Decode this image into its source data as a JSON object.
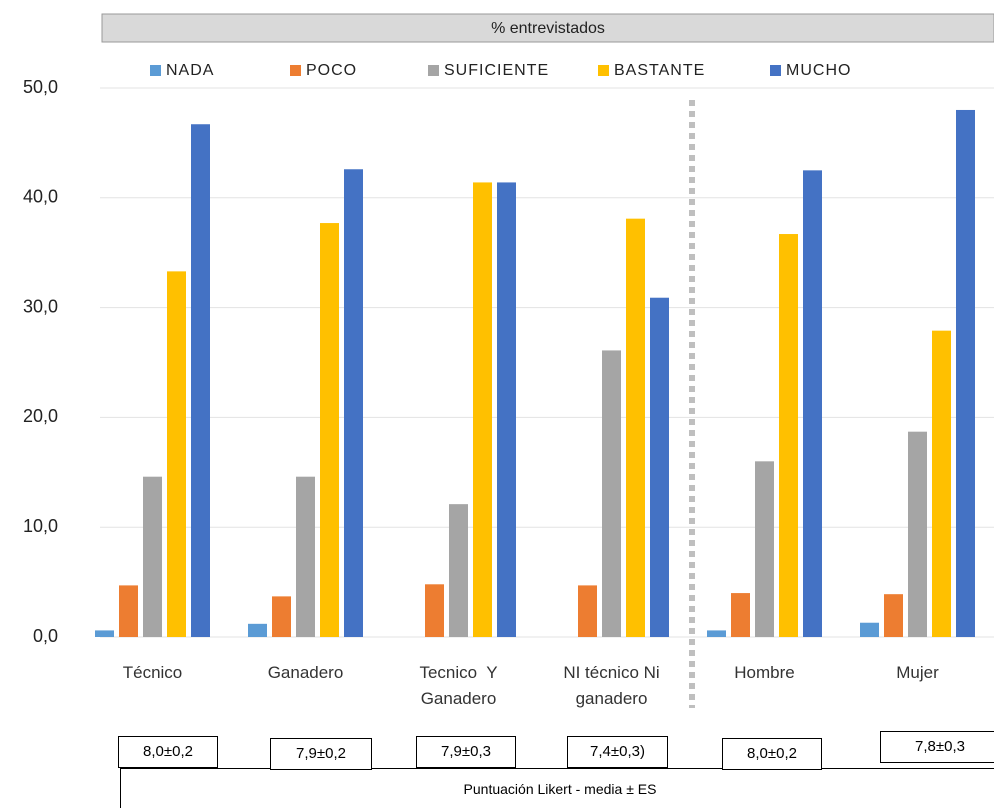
{
  "chart_data": {
    "type": "bar",
    "title": "% entrevistados",
    "categories": [
      "Técnico",
      "Ganadero",
      "Tecnico  Y Ganadero",
      "NI técnico Ni ganadero",
      "Hombre",
      "Mujer"
    ],
    "series": [
      {
        "name": "NADA",
        "color": "#5b9bd5",
        "values": [
          0.6,
          1.2,
          0,
          0,
          0.6,
          1.3
        ]
      },
      {
        "name": "POCO",
        "color": "#ed7d31",
        "values": [
          4.7,
          3.7,
          4.8,
          4.7,
          4.0,
          3.9
        ]
      },
      {
        "name": "SUFICIENTE",
        "color": "#a5a5a5",
        "values": [
          14.6,
          14.6,
          12.1,
          26.1,
          16.0,
          18.7
        ]
      },
      {
        "name": "BASTANTE",
        "color": "#ffc000",
        "values": [
          33.3,
          37.7,
          41.4,
          38.1,
          36.7,
          27.9
        ]
      },
      {
        "name": "MUCHO",
        "color": "#4472c4",
        "values": [
          46.7,
          42.6,
          41.4,
          30.9,
          42.5,
          48.0
        ]
      }
    ],
    "ylim": [
      0,
      50
    ],
    "yticks": [
      {
        "value": 0,
        "label": "0,0"
      },
      {
        "value": 10,
        "label": "10,0"
      },
      {
        "value": 20,
        "label": "20,0"
      },
      {
        "value": 30,
        "label": "30,0"
      },
      {
        "value": 40,
        "label": "40,0"
      },
      {
        "value": 50,
        "label": "50,0"
      }
    ],
    "grid": true,
    "annotations": [
      "8,0±0,2",
      "7,9±0,2",
      "7,9±0,3",
      "7,4±0,3)",
      "8,0±0,2",
      "7,8±0,3"
    ],
    "footer": "Puntuación Likert - media ± ES"
  }
}
